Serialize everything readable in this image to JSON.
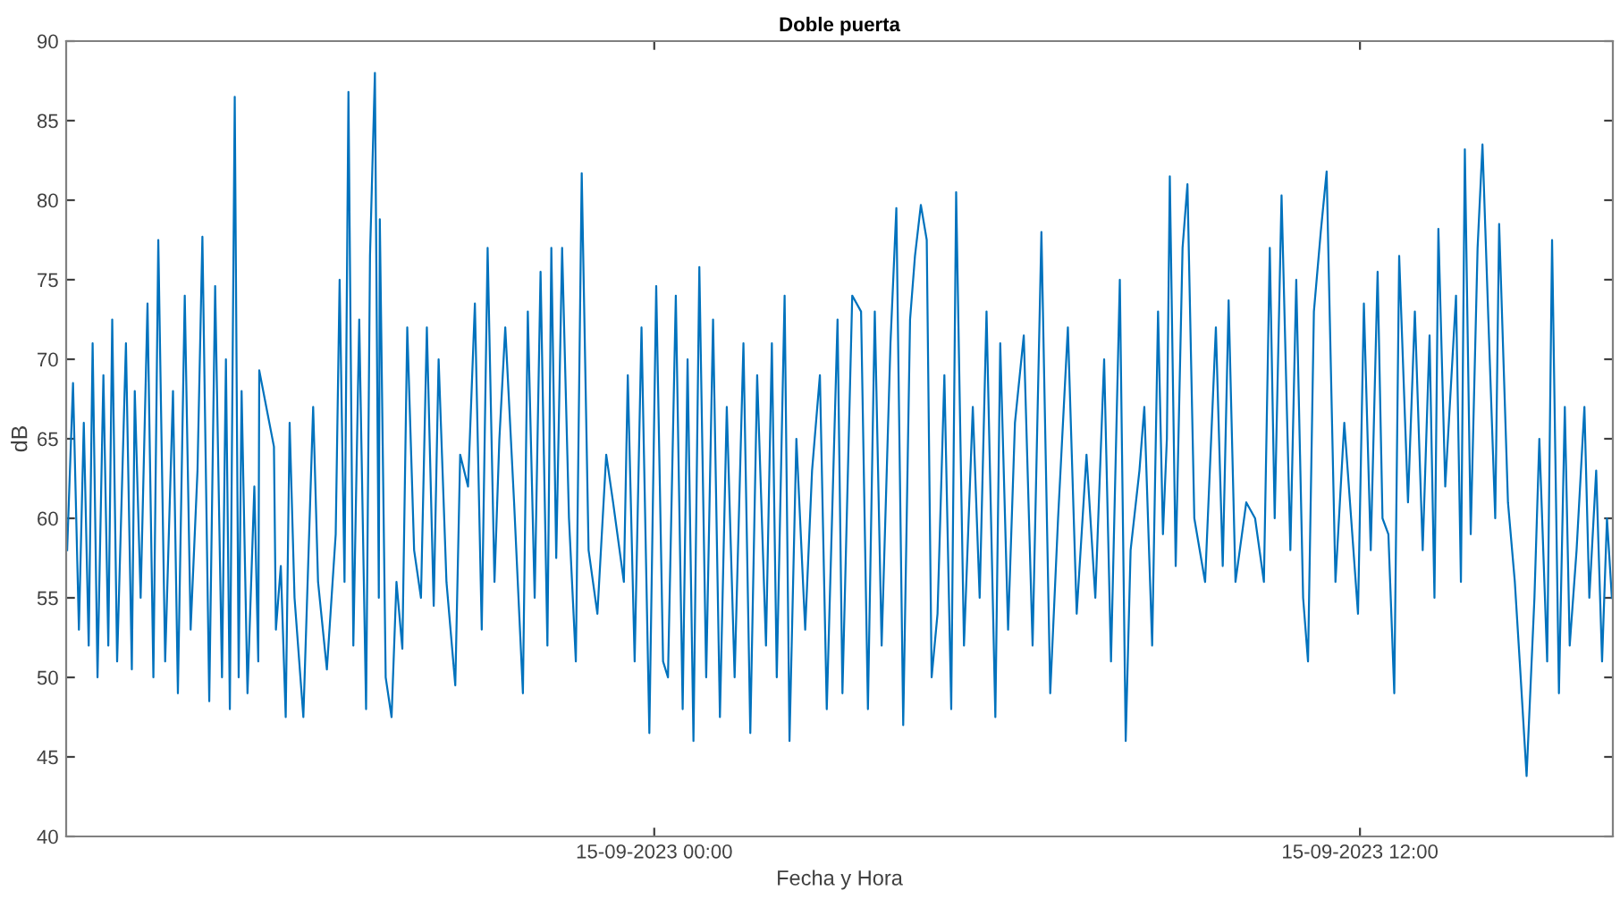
{
  "chart_data": {
    "type": "line",
    "title": "Doble puerta",
    "xlabel": "Fecha y Hora",
    "ylabel": "dB",
    "xlim": [
      "2023-09-14T14:00",
      "2023-09-15T16:18"
    ],
    "xticks": [
      {
        "value": "2023-09-15T00:00",
        "label": "15-09-2023 00:00"
      },
      {
        "value": "2023-09-15T12:00",
        "label": "15-09-2023 12:00"
      }
    ],
    "ylim": [
      40,
      90
    ],
    "yticks": [
      40,
      45,
      50,
      55,
      60,
      65,
      70,
      75,
      80,
      85,
      90
    ],
    "series": [
      {
        "color": "#0072bd",
        "x": [
          "2023-09-14T14:01",
          "2023-09-14T14:07",
          "2023-09-14T14:13",
          "2023-09-14T14:18",
          "2023-09-14T14:23",
          "2023-09-14T14:27",
          "2023-09-14T14:32",
          "2023-09-14T14:38",
          "2023-09-14T14:43",
          "2023-09-14T14:47",
          "2023-09-14T14:52",
          "2023-09-14T15:01",
          "2023-09-14T15:07",
          "2023-09-14T15:10",
          "2023-09-14T15:16",
          "2023-09-14T15:23",
          "2023-09-14T15:29",
          "2023-09-14T15:34",
          "2023-09-14T15:41",
          "2023-09-14T15:49",
          "2023-09-14T15:54",
          "2023-09-14T16:01",
          "2023-09-14T16:07",
          "2023-09-14T16:14",
          "2023-09-14T16:19",
          "2023-09-14T16:26",
          "2023-09-14T16:32",
          "2023-09-14T16:39",
          "2023-09-14T16:43",
          "2023-09-14T16:47",
          "2023-09-14T16:52",
          "2023-09-14T16:56",
          "2023-09-14T16:59",
          "2023-09-14T17:05",
          "2023-09-14T17:12",
          "2023-09-14T17:16",
          "2023-09-14T17:17",
          "2023-09-14T17:32",
          "2023-09-14T17:34",
          "2023-09-14T17:39",
          "2023-09-14T17:44",
          "2023-09-14T17:48",
          "2023-09-14T17:53",
          "2023-09-14T18:02",
          "2023-09-14T18:12",
          "2023-09-14T18:17",
          "2023-09-14T18:26",
          "2023-09-14T18:35",
          "2023-09-14T18:39",
          "2023-09-14T18:44",
          "2023-09-14T18:48",
          "2023-09-14T18:53",
          "2023-09-14T18:59",
          "2023-09-14T19:06",
          "2023-09-14T19:10",
          "2023-09-14T19:15",
          "2023-09-14T19:19",
          "2023-09-14T19:20",
          "2023-09-14T19:26",
          "2023-09-14T19:32",
          "2023-09-14T19:37",
          "2023-09-14T19:43",
          "2023-09-14T19:48",
          "2023-09-14T19:55",
          "2023-09-14T20:02",
          "2023-09-14T20:08",
          "2023-09-14T20:15",
          "2023-09-14T20:20",
          "2023-09-14T20:28",
          "2023-09-14T20:37",
          "2023-09-14T20:42",
          "2023-09-14T20:50",
          "2023-09-14T20:57",
          "2023-09-14T21:04",
          "2023-09-14T21:10",
          "2023-09-14T21:17",
          "2023-09-14T21:22",
          "2023-09-14T21:28",
          "2023-09-14T21:37",
          "2023-09-14T21:46",
          "2023-09-14T21:51",
          "2023-09-14T21:58",
          "2023-09-14T22:04",
          "2023-09-14T22:11",
          "2023-09-14T22:15",
          "2023-09-14T22:20",
          "2023-09-14T22:26",
          "2023-09-14T22:33",
          "2023-09-14T22:40",
          "2023-09-14T22:46",
          "2023-09-14T22:53",
          "2023-09-14T23:02",
          "2023-09-14T23:11",
          "2023-09-14T23:18",
          "2023-09-14T23:29",
          "2023-09-14T23:33",
          "2023-09-14T23:40",
          "2023-09-14T23:47",
          "2023-09-14T23:55",
          "2023-09-15T00:02",
          "2023-09-15T00:09",
          "2023-09-15T00:14",
          "2023-09-15T00:22",
          "2023-09-15T00:29",
          "2023-09-15T00:34",
          "2023-09-15T00:40",
          "2023-09-15T00:46",
          "2023-09-15T00:53",
          "2023-09-15T01:00",
          "2023-09-15T01:07",
          "2023-09-15T01:14",
          "2023-09-15T01:22",
          "2023-09-15T01:31",
          "2023-09-15T01:38",
          "2023-09-15T01:45",
          "2023-09-15T01:54",
          "2023-09-15T02:00",
          "2023-09-15T02:05",
          "2023-09-15T02:13",
          "2023-09-15T02:18",
          "2023-09-15T02:25",
          "2023-09-15T02:34",
          "2023-09-15T02:41",
          "2023-09-15T02:49",
          "2023-09-15T02:56",
          "2023-09-15T03:07",
          "2023-09-15T03:12",
          "2023-09-15T03:22",
          "2023-09-15T03:31",
          "2023-09-15T03:38",
          "2023-09-15T03:45",
          "2023-09-15T03:52",
          "2023-09-15T04:01",
          "2023-09-15T04:07",
          "2023-09-15T04:14",
          "2023-09-15T04:21",
          "2023-09-15T04:26",
          "2023-09-15T04:32",
          "2023-09-15T04:38",
          "2023-09-15T04:43",
          "2023-09-15T04:49",
          "2023-09-15T04:56",
          "2023-09-15T05:03",
          "2023-09-15T05:08",
          "2023-09-15T05:16",
          "2023-09-15T05:25",
          "2023-09-15T05:32",
          "2023-09-15T05:39",
          "2023-09-15T05:48",
          "2023-09-15T05:53",
          "2023-09-15T06:01",
          "2023-09-15T06:08",
          "2023-09-15T06:17",
          "2023-09-15T06:26",
          "2023-09-15T06:35",
          "2023-09-15T06:44",
          "2023-09-15T06:52",
          "2023-09-15T07:02",
          "2023-09-15T07:11",
          "2023-09-15T07:21",
          "2023-09-15T07:30",
          "2023-09-15T07:39",
          "2023-09-15T07:46",
          "2023-09-15T07:55",
          "2023-09-15T08:01",
          "2023-09-15T08:06",
          "2023-09-15T08:15",
          "2023-09-15T08:20",
          "2023-09-15T08:28",
          "2023-09-15T08:34",
          "2023-09-15T08:39",
          "2023-09-15T08:43",
          "2023-09-15T08:46",
          "2023-09-15T08:52",
          "2023-09-15T08:59",
          "2023-09-15T09:04",
          "2023-09-15T09:11",
          "2023-09-15T09:22",
          "2023-09-15T09:33",
          "2023-09-15T09:40",
          "2023-09-15T09:46",
          "2023-09-15T09:53",
          "2023-09-15T10:04",
          "2023-09-15T10:13",
          "2023-09-15T10:22",
          "2023-09-15T10:28",
          "2023-09-15T10:33",
          "2023-09-15T10:40",
          "2023-09-15T10:49",
          "2023-09-15T10:55",
          "2023-09-15T11:02",
          "2023-09-15T11:07",
          "2023-09-15T11:13",
          "2023-09-15T11:20",
          "2023-09-15T11:26",
          "2023-09-15T11:35",
          "2023-09-15T11:44",
          "2023-09-15T11:51",
          "2023-09-15T11:58",
          "2023-09-15T12:04",
          "2023-09-15T12:11",
          "2023-09-15T12:18",
          "2023-09-15T12:23",
          "2023-09-15T12:29",
          "2023-09-15T12:35",
          "2023-09-15T12:40",
          "2023-09-15T12:49",
          "2023-09-15T12:56",
          "2023-09-15T13:04",
          "2023-09-15T13:11",
          "2023-09-15T13:16",
          "2023-09-15T13:20",
          "2023-09-15T13:27",
          "2023-09-15T13:38",
          "2023-09-15T13:43",
          "2023-09-15T13:47",
          "2023-09-15T13:53",
          "2023-09-15T14:00",
          "2023-09-15T14:05",
          "2023-09-15T14:11",
          "2023-09-15T14:18",
          "2023-09-15T14:22",
          "2023-09-15T14:31",
          "2023-09-15T14:38",
          "2023-09-15T14:43",
          "2023-09-15T14:50",
          "2023-09-15T14:58",
          "2023-09-15T15:03",
          "2023-09-15T15:11",
          "2023-09-15T15:16",
          "2023-09-15T15:23",
          "2023-09-15T15:29",
          "2023-09-15T15:34",
          "2023-09-15T15:41",
          "2023-09-15T15:49",
          "2023-09-15T15:54",
          "2023-09-15T16:01",
          "2023-09-15T16:07",
          "2023-09-15T16:12",
          "2023-09-15T16:17"
        ],
        "values": [
          58,
          68.5,
          53,
          66,
          52,
          71,
          50,
          69,
          52,
          72.5,
          51,
          71,
          50.5,
          68,
          55,
          73.5,
          50,
          77.5,
          51,
          68,
          49,
          74,
          53,
          63,
          77.7,
          48.5,
          74.6,
          50,
          70,
          48,
          86.5,
          50,
          68,
          49,
          62,
          51,
          69.3,
          64.5,
          53,
          57,
          47.5,
          66,
          55,
          47.5,
          67,
          56,
          50.5,
          59,
          75,
          56,
          86.8,
          52,
          72.5,
          48,
          76.5,
          88,
          55,
          78.8,
          50,
          47.5,
          56,
          51.8,
          72,
          58,
          55,
          72,
          54.5,
          70,
          56,
          49.5,
          64,
          62,
          73.5,
          53,
          77,
          56,
          65,
          72,
          61,
          49,
          73,
          55,
          75.5,
          52,
          77,
          57.5,
          77,
          60,
          51,
          81.7,
          58,
          54,
          64,
          61,
          56,
          69,
          51,
          72,
          46.5,
          74.6,
          51,
          50,
          74,
          48,
          70,
          46,
          75.8,
          50,
          72.5,
          47.5,
          67,
          50,
          71,
          46.5,
          69,
          52,
          71,
          50,
          74,
          46,
          65,
          53,
          63,
          69,
          48,
          72.5,
          49,
          74,
          73,
          48,
          73,
          52,
          71,
          79.5,
          47,
          72.5,
          76.5,
          79.7,
          77.5,
          50,
          54,
          69,
          48,
          80.5,
          52,
          67,
          55,
          73,
          47.5,
          71,
          53,
          66,
          71.5,
          52,
          78,
          49,
          60,
          72,
          54,
          64,
          55,
          70,
          51,
          75,
          46,
          58,
          63,
          67,
          52,
          73,
          59,
          65,
          81.5,
          57,
          77,
          81,
          60,
          56,
          72,
          57,
          73.7,
          56,
          61,
          60,
          56,
          77,
          60,
          80.3,
          58,
          75,
          55,
          51,
          73,
          78,
          81.8,
          56,
          66,
          60,
          54,
          73.5,
          58,
          75.5,
          60,
          59,
          49,
          76.5,
          61,
          73,
          58,
          71.5,
          55,
          78.2,
          62,
          74,
          56,
          83.2,
          59,
          77,
          83.5,
          72.5,
          60,
          78.5,
          61,
          56,
          51,
          43.8,
          55,
          65,
          51,
          77.5,
          49,
          67,
          52,
          58,
          67,
          55,
          63,
          51,
          60,
          55
        ]
      }
    ]
  }
}
